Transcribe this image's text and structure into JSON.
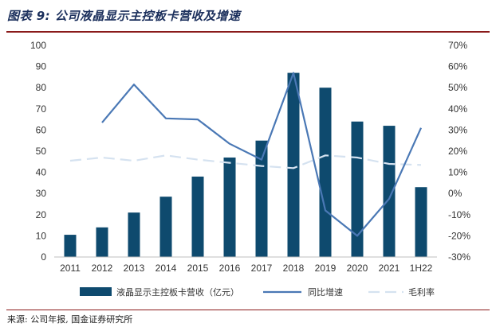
{
  "title": "图表 9: 公司液晶显示主控板卡营收及增速",
  "source": "来源: 公司年报, 国金证券研究所",
  "colors": {
    "bar": "#0e4a6e",
    "growth_line": "#4a78b5",
    "margin_line": "#d5e2f0",
    "title": "#1b2f5c",
    "rule": "#8a1a1a"
  },
  "chart_data": {
    "type": "bar",
    "categories": [
      "2011",
      "2012",
      "2013",
      "2014",
      "2015",
      "2016",
      "2017",
      "2018",
      "2019",
      "2020",
      "2021",
      "1H22"
    ],
    "series": [
      {
        "name": "液晶显示主控板卡营收（亿元）",
        "type": "bar",
        "axis": "left",
        "values": [
          10.5,
          14,
          21,
          28.5,
          38,
          47,
          55,
          87,
          80,
          64,
          62,
          33
        ]
      },
      {
        "name": "同比增速",
        "type": "line",
        "axis": "right",
        "values": [
          null,
          33.5,
          51.5,
          35.5,
          35,
          23.5,
          16,
          57,
          -8,
          -20,
          -2.5,
          31
        ]
      },
      {
        "name": "毛利率",
        "type": "line",
        "style": "dashed",
        "axis": "right",
        "values": [
          15.5,
          17,
          15.5,
          18,
          16,
          14.5,
          13,
          12,
          18,
          17,
          14,
          13.5
        ]
      }
    ],
    "left_axis": {
      "ylim": [
        0,
        100
      ],
      "ticks": [
        "0",
        "10",
        "20",
        "30",
        "40",
        "50",
        "60",
        "70",
        "80",
        "90",
        "100"
      ]
    },
    "right_axis": {
      "ylim": [
        -30,
        70
      ],
      "ticks": [
        "-30%",
        "-20%",
        "-10%",
        "0%",
        "10%",
        "20%",
        "30%",
        "40%",
        "50%",
        "60%",
        "70%"
      ]
    },
    "legend": [
      {
        "label": "液晶显示主控板卡营收（亿元）"
      },
      {
        "label": "同比增速"
      },
      {
        "label": "毛利率"
      }
    ],
    "legend_position": "bottom"
  }
}
